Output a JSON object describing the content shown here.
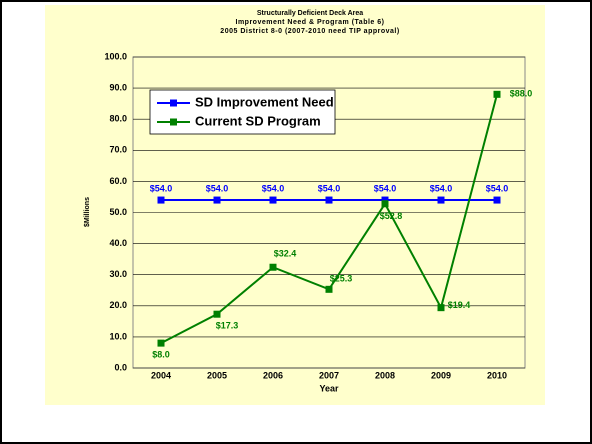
{
  "chart_data": {
    "type": "line",
    "title": "Structurally Deficient Deck Area",
    "subtitle": "Improvement Need & Program (Table 6)",
    "subtitle2": "2005 District  8-0 (2007-2010 need TIP approval)",
    "x_label": "Year",
    "y_label": "$Millions",
    "categories": [
      "2004",
      "2005",
      "2006",
      "2007",
      "2008",
      "2009",
      "2010"
    ],
    "series": [
      {
        "name": "SD Improvement Need",
        "color": "#0000ff",
        "values": [
          54.0,
          54.0,
          54.0,
          54.0,
          54.0,
          54.0,
          54.0
        ],
        "value_labels": [
          "$54.0",
          "$54.0",
          "$54.0",
          "$54.0",
          "$54.0",
          "$54.0",
          "$54.0"
        ]
      },
      {
        "name": "Current SD Program",
        "color": "#008000",
        "values": [
          8.0,
          17.3,
          32.4,
          25.3,
          52.8,
          19.4,
          88.0
        ],
        "value_labels": [
          "$8.0",
          "$17.3",
          "$32.4",
          "$25.3",
          "$52.8",
          "$19.4",
          "$88.0"
        ]
      }
    ],
    "ylim": [
      0,
      100
    ],
    "yticks": [
      {
        "value": 0,
        "label": "0.0"
      },
      {
        "value": 10,
        "label": "10.0"
      },
      {
        "value": 20,
        "label": "20.0"
      },
      {
        "value": 30,
        "label": "30.0"
      },
      {
        "value": 40,
        "label": "40.0"
      },
      {
        "value": 50,
        "label": "50.0"
      },
      {
        "value": 60,
        "label": "60.0"
      },
      {
        "value": 70,
        "label": "70.0"
      },
      {
        "value": 80,
        "label": "80.0"
      },
      {
        "value": 90,
        "label": "90.0"
      },
      {
        "value": 100,
        "label": "100.0"
      }
    ],
    "grid": true
  }
}
